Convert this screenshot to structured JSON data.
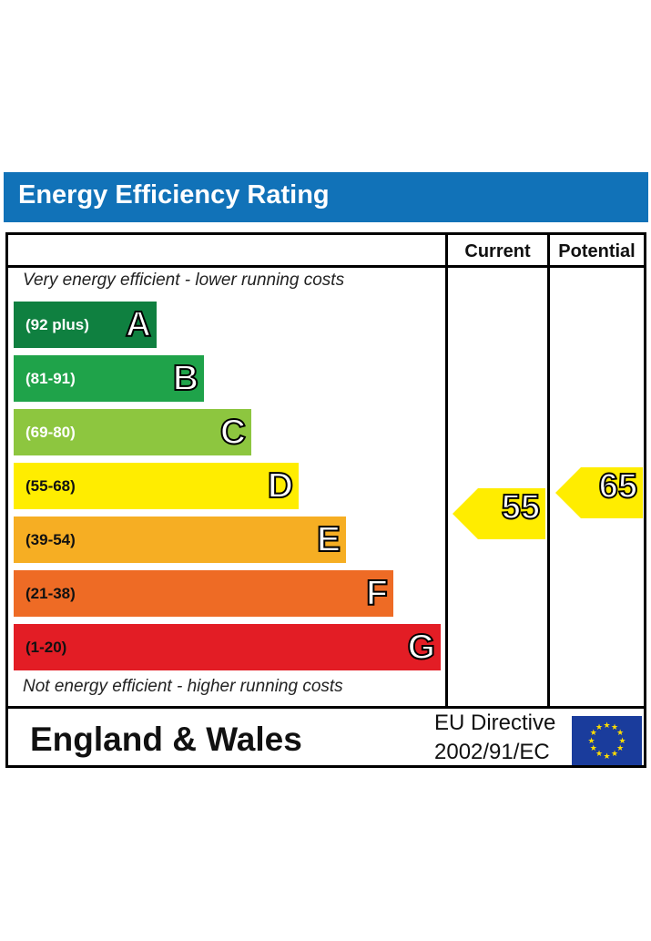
{
  "title": "Energy Efficiency Rating",
  "columns": {
    "current": "Current",
    "potential": "Potential"
  },
  "captions": {
    "top": "Very energy efficient - lower running costs",
    "bottom": "Not energy efficient - higher running costs"
  },
  "footer": {
    "region": "England & Wales",
    "directive_line1": "EU Directive",
    "directive_line2": "2002/91/EC"
  },
  "colors": {
    "title_bar": "#1172b8",
    "A": "#0f8040",
    "B": "#1fa34a",
    "C": "#8dc63f",
    "D": "#ffed00",
    "E": "#f6ae23",
    "F": "#ee6b25",
    "G": "#e31d25",
    "marker": "#ffed00",
    "eu_flag": "#1a3c9c",
    "eu_star": "#ffdd00"
  },
  "chart_data": {
    "type": "bar",
    "title": "Energy Efficiency Rating",
    "bands": [
      {
        "letter": "A",
        "range": "(92 plus)",
        "min": 92,
        "max": null
      },
      {
        "letter": "B",
        "range": "(81-91)",
        "min": 81,
        "max": 91
      },
      {
        "letter": "C",
        "range": "(69-80)",
        "min": 69,
        "max": 80
      },
      {
        "letter": "D",
        "range": "(55-68)",
        "min": 55,
        "max": 68
      },
      {
        "letter": "E",
        "range": "(39-54)",
        "min": 39,
        "max": 54
      },
      {
        "letter": "F",
        "range": "(21-38)",
        "min": 21,
        "max": 38
      },
      {
        "letter": "G",
        "range": "(1-20)",
        "min": 1,
        "max": 20
      }
    ],
    "ratings": {
      "current": 55,
      "potential": 65
    }
  }
}
